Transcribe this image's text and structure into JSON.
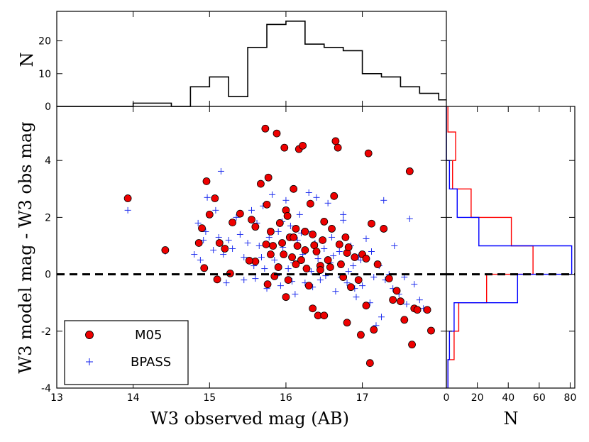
{
  "colors": {
    "m05_fill": "#ee0000",
    "bpass": "#1f2fee",
    "hist_red": "#ff0000",
    "hist_blue": "#0000ff",
    "frame": "#000000"
  },
  "chart_data": [
    {
      "id": "scatter",
      "type": "scatter",
      "xlabel": "W3 observed mag (AB)",
      "ylabel": "W3 model mag - W3 obs mag",
      "xlim": [
        13,
        18.1
      ],
      "ylim": [
        -4,
        5.9
      ],
      "xticks": [
        13,
        14,
        15,
        16,
        17
      ],
      "xticklabels": [
        "13",
        "14",
        "15",
        "16",
        "17"
      ],
      "yticks": [
        -4,
        -2,
        0,
        2,
        4
      ],
      "yticklabels": [
        "-4",
        "-2",
        "0",
        "2",
        "4"
      ],
      "reference_line": {
        "y": 0,
        "style": "dashed"
      },
      "legend": {
        "loc": "lower-left",
        "entries": [
          {
            "label": "M05",
            "marker": "circle"
          },
          {
            "label": "BPASS",
            "marker": "plus"
          }
        ]
      },
      "series": [
        {
          "name": "M05",
          "marker": "circle",
          "points": [
            [
              13.93,
              2.67
            ],
            [
              14.42,
              0.85
            ],
            [
              14.86,
              1.1
            ],
            [
              14.9,
              1.62
            ],
            [
              14.93,
              0.22
            ],
            [
              14.96,
              3.27
            ],
            [
              15.0,
              2.1
            ],
            [
              15.07,
              2.67
            ],
            [
              15.1,
              -0.18
            ],
            [
              15.13,
              1.1
            ],
            [
              15.2,
              0.9
            ],
            [
              15.27,
              0.03
            ],
            [
              15.3,
              1.82
            ],
            [
              15.4,
              2.13
            ],
            [
              15.6,
              1.67
            ],
            [
              15.6,
              0.45
            ],
            [
              15.67,
              3.18
            ],
            [
              15.73,
              5.12
            ],
            [
              15.77,
              3.4
            ],
            [
              15.75,
              2.45
            ],
            [
              15.8,
              1.5
            ],
            [
              15.83,
              1.0
            ],
            [
              15.85,
              -0.07
            ],
            [
              15.88,
              4.95
            ],
            [
              15.92,
              1.8
            ],
            [
              15.95,
              1.1
            ],
            [
              15.97,
              0.7
            ],
            [
              15.98,
              4.45
            ],
            [
              16.0,
              2.25
            ],
            [
              16.02,
              2.05
            ],
            [
              16.05,
              1.3
            ],
            [
              16.08,
              0.6
            ],
            [
              16.1,
              3.0
            ],
            [
              16.13,
              1.6
            ],
            [
              16.15,
              1.0
            ],
            [
              16.17,
              4.4
            ],
            [
              16.2,
              0.5
            ],
            [
              16.22,
              4.52
            ],
            [
              16.25,
              1.5
            ],
            [
              16.27,
              0.2
            ],
            [
              16.3,
              -0.4
            ],
            [
              16.32,
              2.48
            ],
            [
              16.35,
              1.4
            ],
            [
              16.37,
              1.02
            ],
            [
              16.4,
              0.8
            ],
            [
              16.42,
              -1.45
            ],
            [
              16.45,
              0.3
            ],
            [
              16.48,
              1.2
            ],
            [
              16.5,
              1.85
            ],
            [
              16.55,
              0.5
            ],
            [
              16.6,
              1.6
            ],
            [
              16.63,
              2.75
            ],
            [
              16.65,
              4.68
            ],
            [
              16.68,
              4.45
            ],
            [
              16.7,
              1.05
            ],
            [
              16.72,
              0.35
            ],
            [
              16.75,
              -0.1
            ],
            [
              16.78,
              1.3
            ],
            [
              16.8,
              0.75
            ],
            [
              16.85,
              -0.45
            ],
            [
              16.9,
              0.6
            ],
            [
              16.95,
              -0.2
            ],
            [
              17.0,
              0.7
            ],
            [
              17.05,
              0.55
            ],
            [
              17.08,
              4.25
            ],
            [
              17.12,
              1.78
            ],
            [
              17.15,
              -1.95
            ],
            [
              17.2,
              0.35
            ],
            [
              17.28,
              1.6
            ],
            [
              17.35,
              -0.15
            ],
            [
              17.4,
              -0.9
            ],
            [
              17.45,
              -0.58
            ],
            [
              17.5,
              -0.95
            ],
            [
              17.55,
              -1.6
            ],
            [
              17.62,
              3.62
            ],
            [
              17.65,
              -2.47
            ],
            [
              17.68,
              -1.2
            ],
            [
              17.72,
              -1.25
            ],
            [
              17.85,
              -1.25
            ],
            [
              17.9,
              -1.98
            ],
            [
              15.52,
              0.48
            ],
            [
              15.55,
              1.92
            ],
            [
              15.74,
              1.05
            ],
            [
              15.76,
              -0.35
            ],
            [
              15.9,
              0.25
            ],
            [
              16.03,
              -0.2
            ],
            [
              16.13,
              0.35
            ],
            [
              16.25,
              0.85
            ],
            [
              16.35,
              -1.2
            ],
            [
              16.5,
              -1.45
            ],
            [
              16.58,
              0.25
            ],
            [
              16.8,
              -1.7
            ],
            [
              16.82,
              0.95
            ],
            [
              16.98,
              -2.13
            ],
            [
              17.05,
              -1.1
            ],
            [
              17.1,
              -3.12
            ],
            [
              16.0,
              -0.8
            ],
            [
              15.8,
              0.7
            ],
            [
              16.1,
              1.3
            ],
            [
              16.45,
              0.15
            ]
          ]
        },
        {
          "name": "BPASS",
          "marker": "plus",
          "points": [
            [
              13.93,
              2.25
            ],
            [
              14.42,
              0.8
            ],
            [
              14.8,
              0.7
            ],
            [
              14.88,
              0.5
            ],
            [
              14.92,
              1.2
            ],
            [
              14.95,
              1.5
            ],
            [
              14.97,
              2.7
            ],
            [
              15.05,
              0.85
            ],
            [
              15.08,
              2.25
            ],
            [
              15.12,
              1.3
            ],
            [
              15.15,
              3.62
            ],
            [
              15.18,
              0.7
            ],
            [
              15.22,
              -0.3
            ],
            [
              15.25,
              1.2
            ],
            [
              15.3,
              0.9
            ],
            [
              15.35,
              2.0
            ],
            [
              15.4,
              1.4
            ],
            [
              15.45,
              0.6
            ],
            [
              15.5,
              1.1
            ],
            [
              15.55,
              2.25
            ],
            [
              15.58,
              0.3
            ],
            [
              15.62,
              1.8
            ],
            [
              15.65,
              1.0
            ],
            [
              15.7,
              2.4
            ],
            [
              15.72,
              0.2
            ],
            [
              15.75,
              -0.5
            ],
            [
              15.78,
              1.3
            ],
            [
              15.82,
              2.8
            ],
            [
              15.85,
              0.5
            ],
            [
              15.9,
              1.5
            ],
            [
              15.93,
              -0.4
            ],
            [
              15.96,
              0.95
            ],
            [
              16.0,
              2.6
            ],
            [
              16.03,
              0.2
            ],
            [
              16.06,
              1.7
            ],
            [
              16.1,
              0.4
            ],
            [
              16.12,
              -0.7
            ],
            [
              16.15,
              1.2
            ],
            [
              16.18,
              2.1
            ],
            [
              16.22,
              0.7
            ],
            [
              16.25,
              -0.3
            ],
            [
              16.28,
              1.5
            ],
            [
              16.3,
              2.87
            ],
            [
              16.33,
              0.1
            ],
            [
              16.38,
              1.1
            ],
            [
              16.4,
              2.7
            ],
            [
              16.45,
              -0.2
            ],
            [
              16.5,
              0.9
            ],
            [
              16.55,
              2.5
            ],
            [
              16.58,
              0.4
            ],
            [
              16.6,
              1.3
            ],
            [
              16.65,
              -0.6
            ],
            [
              16.7,
              0.8
            ],
            [
              16.75,
              2.1
            ],
            [
              16.8,
              -0.3
            ],
            [
              16.85,
              1.0
            ],
            [
              16.88,
              0.3
            ],
            [
              16.92,
              -0.8
            ],
            [
              16.95,
              0.6
            ],
            [
              17.0,
              -0.4
            ],
            [
              17.05,
              1.25
            ],
            [
              17.1,
              -1.0
            ],
            [
              17.12,
              0.8
            ],
            [
              17.18,
              -1.8
            ],
            [
              17.22,
              0.3
            ],
            [
              17.28,
              2.6
            ],
            [
              17.3,
              -0.2
            ],
            [
              17.35,
              0.0
            ],
            [
              17.4,
              -0.5
            ],
            [
              17.42,
              1.0
            ],
            [
              17.48,
              -0.7
            ],
            [
              17.55,
              -0.1
            ],
            [
              17.58,
              -1.05
            ],
            [
              17.62,
              1.95
            ],
            [
              17.68,
              -0.35
            ],
            [
              17.75,
              -0.9
            ],
            [
              17.8,
              -1.2
            ],
            [
              15.6,
              -0.15
            ],
            [
              15.68,
              0.6
            ],
            [
              15.88,
              -0.05
            ],
            [
              16.08,
              -0.25
            ],
            [
              16.2,
              1.45
            ],
            [
              16.35,
              -0.45
            ],
            [
              16.52,
              -0.05
            ],
            [
              16.62,
              0.65
            ],
            [
              16.72,
              -0.1
            ],
            [
              16.82,
              0.1
            ],
            [
              16.98,
              0.5
            ],
            [
              17.15,
              -0.1
            ],
            [
              14.85,
              1.8
            ],
            [
              15.45,
              -0.2
            ],
            [
              16.42,
              0.55
            ],
            [
              16.9,
              -0.5
            ],
            [
              15.95,
              1.85
            ],
            [
              16.75,
              1.9
            ],
            [
              17.25,
              -1.5
            ]
          ]
        }
      ]
    },
    {
      "id": "top_histogram",
      "type": "histogram",
      "ylabel": "N",
      "xlim": [
        13,
        18.1
      ],
      "ylim": [
        0,
        29
      ],
      "yticks": [
        0,
        10,
        20
      ],
      "yticklabels": [
        "0",
        "10",
        "20"
      ],
      "bin_width": 0.25,
      "bins": [
        {
          "x": 13.0,
          "count": 0
        },
        {
          "x": 13.25,
          "count": 0
        },
        {
          "x": 13.5,
          "count": 0
        },
        {
          "x": 13.75,
          "count": 0
        },
        {
          "x": 14.0,
          "count": 1
        },
        {
          "x": 14.25,
          "count": 1
        },
        {
          "x": 14.5,
          "count": 0
        },
        {
          "x": 14.75,
          "count": 6
        },
        {
          "x": 15.0,
          "count": 9
        },
        {
          "x": 15.25,
          "count": 3
        },
        {
          "x": 15.5,
          "count": 18
        },
        {
          "x": 15.75,
          "count": 25
        },
        {
          "x": 16.0,
          "count": 26
        },
        {
          "x": 16.25,
          "count": 19
        },
        {
          "x": 16.5,
          "count": 18
        },
        {
          "x": 16.75,
          "count": 17
        },
        {
          "x": 17.0,
          "count": 10
        },
        {
          "x": 17.25,
          "count": 9
        },
        {
          "x": 17.5,
          "count": 6
        },
        {
          "x": 17.75,
          "count": 4
        },
        {
          "x": 18.0,
          "count": 2
        }
      ]
    },
    {
      "id": "right_histogram",
      "type": "histogram",
      "orientation": "horizontal",
      "xlabel": "N",
      "xlim": [
        0,
        83
      ],
      "ylim": [
        -4,
        5.9
      ],
      "xticks": [
        0,
        20,
        40,
        60,
        80
      ],
      "xticklabels": [
        "0",
        "20",
        "40",
        "60",
        "80"
      ],
      "bin_width": 1,
      "series": [
        {
          "name": "M05",
          "bins": [
            {
              "y": -4,
              "count": 1
            },
            {
              "y": -3,
              "count": 5
            },
            {
              "y": -2,
              "count": 8
            },
            {
              "y": -1,
              "count": 26
            },
            {
              "y": 0,
              "count": 56
            },
            {
              "y": 1,
              "count": 42
            },
            {
              "y": 2,
              "count": 16
            },
            {
              "y": 3,
              "count": 4
            },
            {
              "y": 4,
              "count": 6
            },
            {
              "y": 5,
              "count": 1
            }
          ]
        },
        {
          "name": "BPASS",
          "bins": [
            {
              "y": -4,
              "count": 1
            },
            {
              "y": -3,
              "count": 2
            },
            {
              "y": -2,
              "count": 5
            },
            {
              "y": -1,
              "count": 46
            },
            {
              "y": 0,
              "count": 81
            },
            {
              "y": 1,
              "count": 21
            },
            {
              "y": 2,
              "count": 7
            },
            {
              "y": 3,
              "count": 2
            },
            {
              "y": 4,
              "count": 0
            },
            {
              "y": 5,
              "count": 0
            }
          ]
        }
      ]
    }
  ]
}
